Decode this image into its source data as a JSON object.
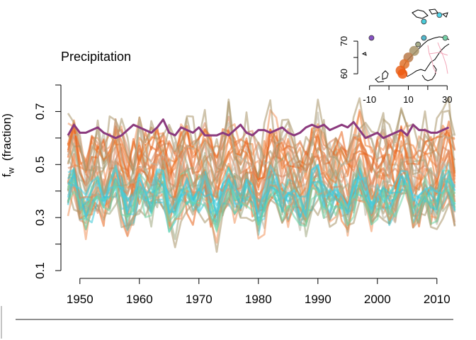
{
  "chart_data": {
    "type": "line",
    "title": "Precipitation",
    "ylabel_main": "f",
    "ylabel_sub": "w",
    "ylabel_rest": "(fraction)",
    "xlim": [
      1948,
      2013
    ],
    "ylim": [
      0.1,
      0.8
    ],
    "x_ticks": [
      1950,
      1960,
      1970,
      1980,
      1990,
      2000,
      2010
    ],
    "y_ticks": [
      0.1,
      0.3,
      0.5,
      0.7
    ],
    "highlight_series": {
      "color": "#8b3a7e",
      "values": [
        0.61,
        0.65,
        0.62,
        0.62,
        0.63,
        0.64,
        0.62,
        0.61,
        0.6,
        0.61,
        0.63,
        0.65,
        0.64,
        0.63,
        0.62,
        0.64,
        0.67,
        0.62,
        0.61,
        0.64,
        0.63,
        0.62,
        0.64,
        0.61,
        0.61,
        0.61,
        0.62,
        0.61,
        0.63,
        0.65,
        0.62,
        0.61,
        0.63,
        0.63,
        0.62,
        0.63,
        0.64,
        0.62,
        0.61,
        0.62,
        0.64,
        0.65,
        0.64,
        0.65,
        0.63,
        0.64,
        0.65,
        0.64,
        0.66,
        0.63,
        0.6,
        0.61,
        0.62,
        0.6,
        0.61,
        0.62,
        0.63,
        0.61,
        0.65,
        0.63,
        0.63,
        0.62,
        0.62,
        0.63,
        0.64
      ]
    },
    "background_series_colors": [
      "#e8621a",
      "#ee7a2e",
      "#f0925a",
      "#d9835a",
      "#a89468",
      "#b8b09a",
      "#9ea57e",
      "#35c6d6",
      "#3fd0e8",
      "#6ed6a6"
    ],
    "background_series_count": 40
  },
  "inset_map": {
    "x_ticks": [
      "-10",
      "10",
      "30"
    ],
    "y_ticks": [
      "60",
      "70"
    ],
    "points": [
      {
        "lon": -9,
        "lat": 71,
        "color": "#7a3fbf"
      },
      {
        "lon": 18,
        "lat": 76,
        "color": "#35c6d6"
      },
      {
        "lon": 26,
        "lat": 78,
        "color": "#3fd0e8"
      },
      {
        "lon": 18,
        "lat": 71,
        "color": "#3fb0c8"
      },
      {
        "lon": 29,
        "lat": 71,
        "color": "#6ed6a6"
      },
      {
        "lon": 15,
        "lat": 69,
        "color": "#9ea57e"
      },
      {
        "lon": 13,
        "lat": 67,
        "color": "#a89468"
      },
      {
        "lon": 10,
        "lat": 65,
        "color": "#b87a4a"
      },
      {
        "lon": 8,
        "lat": 63,
        "color": "#e0722a"
      },
      {
        "lon": 6,
        "lat": 61,
        "color": "#e8621a"
      },
      {
        "lon": 7,
        "lat": 60,
        "color": "#ee5a10"
      }
    ]
  }
}
